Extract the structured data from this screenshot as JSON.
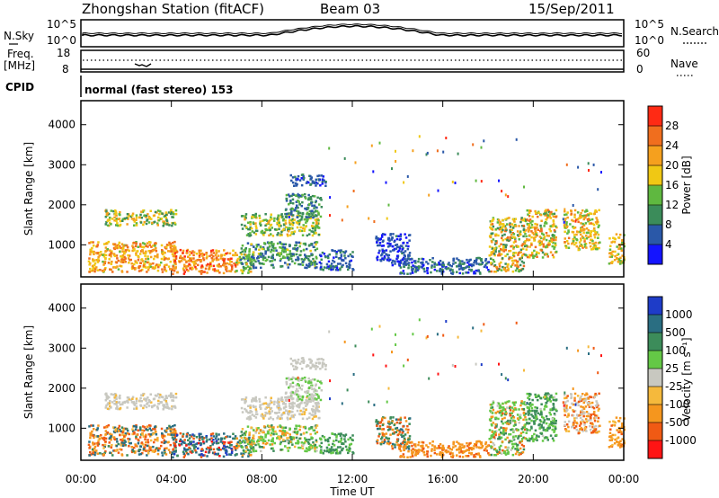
{
  "header": {
    "title": "Zhongshan Station (fitACF)",
    "beam": "Beam 03",
    "date": "15/Sep/2011"
  },
  "panels": {
    "noise": {
      "left_label": "N.Sky",
      "right_label": "N.Search",
      "left_ticks": [
        "10^5",
        "10^0"
      ],
      "right_ticks": [
        "10^5",
        "10^0"
      ]
    },
    "freq": {
      "left_label_1": "Freq.",
      "left_label_2": "[MHz]",
      "right_label": "Nave",
      "left_ticks": [
        "18",
        "8"
      ],
      "right_ticks": [
        "60",
        "0"
      ]
    },
    "cpid": {
      "label": "CPID",
      "text": "normal (fast stereo) 153"
    }
  },
  "colors": {
    "power": [
      "#1414ff",
      "#2a58a8",
      "#3b8c5a",
      "#5fb840",
      "#f0c814",
      "#f5a01e",
      "#f06e1e",
      "#ff2a14"
    ],
    "velocity": [
      "#ff1414",
      "#f05a14",
      "#f5961e",
      "#f5b93c",
      "#c8c8c0",
      "#64c846",
      "#3c8c5a",
      "#2a6e82",
      "#1e3cc8"
    ],
    "frame": "#000000"
  },
  "chart_data": [
    {
      "type": "heatmap",
      "name": "power",
      "ylabel": "Slant Range [km]",
      "xlabel": "",
      "x_ticks": [
        "00:00",
        "04:00",
        "08:00",
        "12:00",
        "16:00",
        "20:00",
        "00:00"
      ],
      "y_ticks": [
        "1000",
        "2000",
        "3000",
        "4000"
      ],
      "ylim": [
        200,
        4600
      ],
      "xlim_hours": [
        0,
        24
      ],
      "colorbar_label": "Power [dB]",
      "colorbar_ticks": [
        "4",
        "8",
        "12",
        "16",
        "20",
        "24",
        "28"
      ]
    },
    {
      "type": "heatmap",
      "name": "velocity",
      "ylabel": "Slant Range [km]",
      "xlabel": "Time UT",
      "x_ticks": [
        "00:00",
        "04:00",
        "08:00",
        "12:00",
        "16:00",
        "20:00",
        "00:00"
      ],
      "y_ticks": [
        "1000",
        "2000",
        "3000",
        "4000"
      ],
      "ylim": [
        200,
        4600
      ],
      "xlim_hours": [
        0,
        24
      ],
      "colorbar_label": "Velocity [m s⁻¹]",
      "colorbar_ticks": [
        "1000",
        "500",
        "100",
        "25",
        "-25",
        "-100",
        "-500",
        "-1000"
      ]
    }
  ],
  "scatter_regions": [
    {
      "t0": 0.3,
      "t1": 4.2,
      "r0": 350,
      "r1": 1100,
      "p": [
        0.55,
        0.7,
        0.85
      ],
      "v": [
        0.15,
        0.3,
        0.85
      ]
    },
    {
      "t0": 4.0,
      "t1": 6.8,
      "r0": 300,
      "r1": 900,
      "p": [
        0.65,
        0.8,
        0.95
      ],
      "v": [
        0.8,
        0.92,
        0.1
      ]
    },
    {
      "t0": 6.8,
      "t1": 7.6,
      "r0": 300,
      "r1": 800,
      "p": [
        0.4,
        0.6
      ],
      "v": [
        0.7,
        0.85,
        0.2
      ]
    },
    {
      "t0": 7.0,
      "t1": 10.4,
      "r0": 450,
      "r1": 1100,
      "p": [
        0.15,
        0.3,
        0.45
      ],
      "v": [
        0.6,
        0.7,
        0.3
      ]
    },
    {
      "t0": 1.0,
      "t1": 4.2,
      "r0": 1500,
      "r1": 1900,
      "p": [
        0.3,
        0.5,
        0.65
      ],
      "v": [
        0.5,
        0.45
      ]
    },
    {
      "t0": 7.0,
      "t1": 10.5,
      "r0": 1250,
      "r1": 1800,
      "p": [
        0.3,
        0.45,
        0.6
      ],
      "v": [
        0.5,
        0.45
      ]
    },
    {
      "t0": 9.0,
      "t1": 10.6,
      "r0": 1700,
      "r1": 2300,
      "p": [
        0.2,
        0.35
      ],
      "v": [
        0.5,
        0.6
      ]
    },
    {
      "t0": 9.2,
      "t1": 10.8,
      "r0": 2500,
      "r1": 2800,
      "p": [
        0.1,
        0.2
      ],
      "v": [
        0.5
      ]
    },
    {
      "t0": 10.5,
      "t1": 12.0,
      "r0": 400,
      "r1": 900,
      "p": [
        0.1,
        0.25
      ],
      "v": [
        0.7
      ]
    },
    {
      "t0": 13.0,
      "t1": 14.5,
      "r0": 500,
      "r1": 1300,
      "p": [
        0.05,
        0.15
      ],
      "v": [
        0.2,
        0.8
      ]
    },
    {
      "t0": 14.0,
      "t1": 18.0,
      "r0": 300,
      "r1": 700,
      "p": [
        0.1,
        0.25
      ],
      "v": [
        0.2,
        0.25
      ]
    },
    {
      "t0": 18.0,
      "t1": 19.6,
      "r0": 350,
      "r1": 1700,
      "p": [
        0.3,
        0.55,
        0.8
      ],
      "v": [
        0.2,
        0.6,
        0.7
      ]
    },
    {
      "t0": 19.6,
      "t1": 21.0,
      "r0": 700,
      "r1": 1900,
      "p": [
        0.4,
        0.6,
        0.8
      ],
      "v": [
        0.6,
        0.7,
        0.75
      ]
    },
    {
      "t0": 21.3,
      "t1": 22.9,
      "r0": 900,
      "r1": 1900,
      "p": [
        0.45,
        0.6,
        0.75
      ],
      "v": [
        0.3,
        0.15,
        0.5
      ]
    },
    {
      "t0": 23.3,
      "t1": 24.0,
      "r0": 550,
      "r1": 1300,
      "p": [
        0.5,
        0.7
      ],
      "v": [
        0.3,
        0.2
      ]
    }
  ]
}
